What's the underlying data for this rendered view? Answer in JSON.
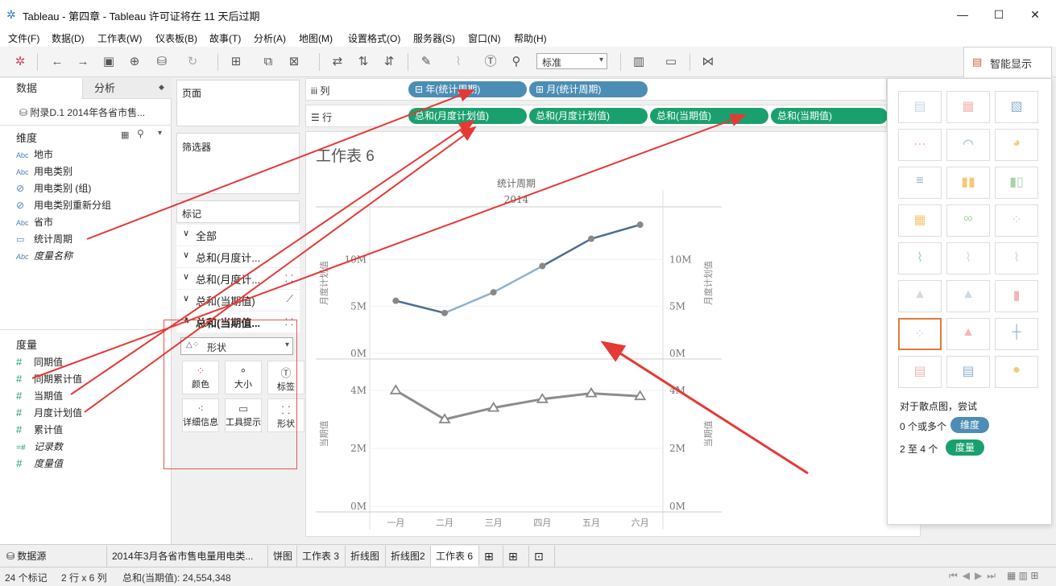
{
  "window": {
    "title": "Tableau - 第四章 - Tableau 许可证将在 11 天后过期",
    "controls": [
      "—",
      "☐",
      "✕"
    ]
  },
  "menu": [
    "文件(F)",
    "数据(D)",
    "工作表(W)",
    "仪表板(B)",
    "故事(T)",
    "分析(A)",
    "地图(M)",
    "设置格式(O)",
    "服务器(S)",
    "窗口(N)",
    "帮助(H)"
  ],
  "toolbar": {
    "fit_select": "标准",
    "show_me_label": "智能显示"
  },
  "data_pane": {
    "tab_data": "数据",
    "tab_analysis": "分析",
    "datasource": "附录D.1 2014年各省市售...",
    "dimensions_title": "维度",
    "dimensions": [
      {
        "icon": "Abc",
        "label": "地市"
      },
      {
        "icon": "Abc",
        "label": "用电类别"
      },
      {
        "icon": "⊘",
        "label": "用电类别 (组)"
      },
      {
        "icon": "⊘",
        "label": "用电类别重新分组"
      },
      {
        "icon": "Abc",
        "label": "省市"
      },
      {
        "icon": "▭",
        "label": "统计周期"
      },
      {
        "icon": "Abc",
        "label": "度量名称"
      }
    ],
    "measures_title": "度量",
    "measures": [
      {
        "icon": "#",
        "label": "同期值"
      },
      {
        "icon": "#",
        "label": "同期累计值"
      },
      {
        "icon": "#",
        "label": "当期值"
      },
      {
        "icon": "#",
        "label": "月度计划值"
      },
      {
        "icon": "#",
        "label": "累计值"
      },
      {
        "icon": "=#",
        "label": "记录数"
      },
      {
        "icon": "#",
        "label": "度量值"
      }
    ]
  },
  "cards": {
    "pages": "页面",
    "filters": "筛选器",
    "marks": "标记",
    "mark_rows": [
      "全部",
      "总和(月度计...",
      "总和(月度计...",
      "总和(当期值)",
      "总和(当期值..."
    ],
    "mark_type": "形状",
    "mark_buttons": [
      "颜色",
      "大小",
      "标签",
      "详细信息",
      "工具提示",
      "形状"
    ]
  },
  "shelves": {
    "columns_label": "列",
    "rows_label": "行",
    "column_pills": [
      "⊟ 年(统计周期)",
      "⊞ 月(统计周期)"
    ],
    "row_pills": [
      "总和(月度计划值)",
      "总和(月度计划值)",
      "总和(当期值)",
      "总和(当期值)"
    ]
  },
  "view": {
    "sheet_title": "工作表 6"
  },
  "chart_data": {
    "type": "line",
    "title": "",
    "header_top": "统计周期",
    "year": "2014",
    "categories": [
      "一月",
      "二月",
      "三月",
      "四月",
      "五月",
      "六月"
    ],
    "panes": [
      {
        "series": [
          {
            "values": [
              5.6,
              4.3,
              6.5,
              9.3,
              12.2,
              13.7
            ]
          }
        ],
        "ylabel_left": "月度计划值",
        "ylabel_right": "月度计划值",
        "yticks": [
          "0M",
          "5M",
          "10M"
        ],
        "ylim": [
          0,
          15
        ],
        "color": "#4a6f95",
        "marker": "circle"
      },
      {
        "series": [
          {
            "values": [
              4.0,
              3.0,
              3.4,
              3.7,
              3.9,
              3.8
            ]
          }
        ],
        "ylabel_left": "当期值",
        "ylabel_right": "当期值",
        "yticks": [
          "0M",
          "2M",
          "4M"
        ],
        "ylim": [
          0,
          5
        ],
        "color": "#8c8c8c",
        "marker": "triangle"
      }
    ]
  },
  "show_me": {
    "hint": "对于散点图，尝试",
    "req1_prefix": "0 个或多个",
    "req1_pill": "维度",
    "req2_prefix": "2 至 4 个",
    "req2_pill": "度量",
    "dim_color": "#4b8db5",
    "measure_color": "#1aa06e"
  },
  "sheet_tabs": [
    "数据源",
    "2014年3月各省市售电量用电类...",
    "饼图",
    "工作表 3",
    "折线图",
    "折线图2",
    "工作表 6"
  ],
  "status": {
    "marks": "24 个标记",
    "rows_cols": "2 行 x 6 列",
    "sum": "总和(当期值): 24,554,348"
  }
}
